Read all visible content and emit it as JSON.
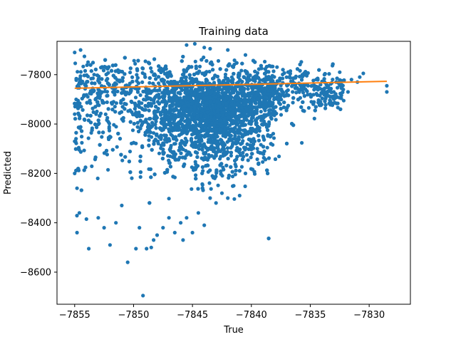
{
  "chart_data": {
    "type": "scatter",
    "title": "Training data",
    "xlabel": "True",
    "ylabel": "Predicted",
    "xlim": [
      -7856.5,
      -7826.5
    ],
    "ylim": [
      -8730,
      -7665
    ],
    "xticks": [
      -7855,
      -7850,
      -7845,
      -7840,
      -7835,
      -7830
    ],
    "xtick_labels": [
      "−7855",
      "−7850",
      "−7845",
      "−7840",
      "−7835",
      "−7830"
    ],
    "yticks": [
      -8600,
      -8400,
      -8200,
      -8000,
      -7800
    ],
    "ytick_labels": [
      "−8600",
      "−8400",
      "−8200",
      "−8000",
      "−7800"
    ],
    "grid": false,
    "legend": "none",
    "colors": {
      "scatter": "#1f77b4",
      "fit": "#ff7f0e"
    },
    "series": [
      {
        "kind": "scatter",
        "points": [
          [
            -7855,
            -7710
          ],
          [
            -7854.5,
            -7700
          ],
          [
            -7855,
            -7960
          ],
          [
            -7855,
            -8070
          ],
          [
            -7855,
            -8200
          ],
          [
            -7854.8,
            -8260
          ],
          [
            -7854.6,
            -8360
          ],
          [
            -7854.8,
            -8440
          ],
          [
            -7854,
            -8385
          ],
          [
            -7853.8,
            -8505
          ],
          [
            -7853,
            -8380
          ],
          [
            -7852.5,
            -8420
          ],
          [
            -7852,
            -8490
          ],
          [
            -7851.5,
            -8400
          ],
          [
            -7851,
            -8330
          ],
          [
            -7850.5,
            -8560
          ],
          [
            -7849.8,
            -8505
          ],
          [
            -7849.5,
            -8420
          ],
          [
            -7849.2,
            -8695
          ],
          [
            -7848.9,
            -8505
          ],
          [
            -7848.5,
            -8500
          ],
          [
            -7848.3,
            -8470
          ],
          [
            -7848,
            -8450
          ],
          [
            -7847.5,
            -8420
          ],
          [
            -7847,
            -8380
          ],
          [
            -7846.5,
            -8440
          ],
          [
            -7846,
            -8400
          ],
          [
            -7845.8,
            -8470
          ],
          [
            -7845.5,
            -8380
          ],
          [
            -7845,
            -8440
          ],
          [
            -7844.5,
            -8360
          ],
          [
            -7844,
            -8410
          ],
          [
            -7843.5,
            -8300
          ],
          [
            -7843,
            -8320
          ],
          [
            -7842.5,
            -8280
          ],
          [
            -7842,
            -8300
          ],
          [
            -7841.5,
            -8250
          ],
          [
            -7841,
            -8290
          ],
          [
            -7840.5,
            -8200
          ],
          [
            -7839.5,
            -8100
          ],
          [
            -7839,
            -8050
          ],
          [
            -7838.5,
            -8000
          ],
          [
            -7838,
            -7950
          ],
          [
            -7837.5,
            -7900
          ],
          [
            -7837,
            -7880
          ],
          [
            -7836.5,
            -7870
          ],
          [
            -7836,
            -7860
          ],
          [
            -7835.5,
            -7840
          ],
          [
            -7835,
            -7880
          ],
          [
            -7834.5,
            -7820
          ],
          [
            -7834,
            -7860
          ],
          [
            -7833.8,
            -7800
          ],
          [
            -7833.5,
            -7850
          ],
          [
            -7833,
            -7870
          ],
          [
            -7832.8,
            -7830
          ],
          [
            -7832.5,
            -7790
          ],
          [
            -7832.2,
            -7860
          ],
          [
            -7831.8,
            -7870
          ],
          [
            -7831.5,
            -7820
          ],
          [
            -7831,
            -7830
          ],
          [
            -7830.8,
            -7810
          ],
          [
            -7830.5,
            -7795
          ],
          [
            -7828.5,
            -7845
          ],
          [
            -7828.5,
            -7870
          ],
          [
            -7845.5,
            -7680
          ],
          [
            -7844.8,
            -7675
          ],
          [
            -7844,
            -7690
          ],
          [
            -7843.5,
            -7695
          ],
          [
            -7842,
            -7700
          ],
          [
            -7840.5,
            -7720
          ]
        ]
      },
      {
        "kind": "line",
        "points": [
          [
            -7855,
            -7855
          ],
          [
            -7828.5,
            -7827
          ]
        ]
      }
    ]
  }
}
